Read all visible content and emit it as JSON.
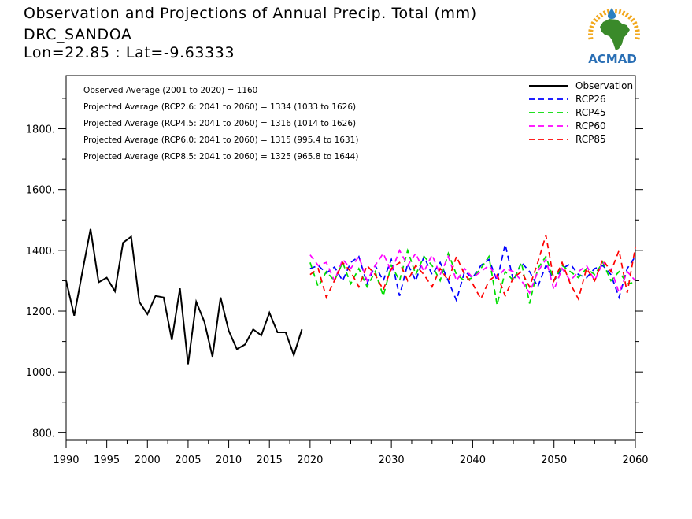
{
  "title_lines": [
    "Observation and Projections of Annual Precip. Total (mm)",
    "DRC_SANDOA",
    "Lon=22.85 : Lat=-9.63333"
  ],
  "logo": {
    "text": "ACMAD",
    "colors": {
      "africa": "#3a8a2a",
      "drop": "#2a7fc1",
      "sun": "#f2a81d",
      "text": "#2a6fb5"
    }
  },
  "chart_data": {
    "type": "line",
    "title": "Observation and Projections of Annual Precip. Total (mm)",
    "xlim": [
      1990,
      2060
    ],
    "ylim": [
      775,
      1975
    ],
    "x_ticks": [
      1990,
      1995,
      2000,
      2005,
      2010,
      2015,
      2020,
      2030,
      2040,
      2050,
      2060
    ],
    "x_tick_labels": [
      "1990",
      "1995",
      "2000",
      "2005",
      "2010",
      "2015",
      "2020",
      "2030",
      "2040",
      "2050",
      "2060"
    ],
    "y_ticks": [
      800,
      1000,
      1200,
      1400,
      1600,
      1800
    ],
    "y_tick_labels": [
      "800.",
      "1000.",
      "1200.",
      "1400.",
      "1600.",
      "1800."
    ],
    "grid": false,
    "legend_position": "top-right",
    "annotations": [
      "Observed Average (2001 to 2020) = 1160",
      "Projected Average (RCP2.6: 2041 to 2060) = 1334 (1033 to 1626)",
      "Projected Average (RCP4.5: 2041 to 2060) = 1316 (1014 to 1626)",
      "Projected Average (RCP6.0: 2041 to 2060) = 1315 (995.4 to 1631)",
      "Projected Average (RCP8.5: 2041 to 2060) = 1325 (965.8 to 1644)"
    ],
    "series": [
      {
        "name": "Observation",
        "color": "#000000",
        "dash": "solid",
        "x": [
          1990,
          1991,
          1992,
          1993,
          1994,
          1995,
          1996,
          1997,
          1998,
          1999,
          2000,
          2001,
          2002,
          2003,
          2004,
          2005,
          2006,
          2007,
          2008,
          2009,
          2010,
          2011,
          2012,
          2013,
          2014,
          2015,
          2016,
          2017,
          2018,
          2019
        ],
        "y": [
          1300,
          1185,
          1330,
          1470,
          1295,
          1310,
          1265,
          1425,
          1445,
          1230,
          1190,
          1250,
          1245,
          1105,
          1275,
          1025,
          1230,
          1165,
          1050,
          1245,
          1135,
          1075,
          1090,
          1140,
          1120,
          1195,
          1130,
          1130,
          1055,
          1140
        ]
      },
      {
        "name": "RCP26",
        "color": "#0000ff",
        "dash": "dashed",
        "x": [
          2020,
          2021,
          2022,
          2023,
          2024,
          2025,
          2026,
          2027,
          2028,
          2029,
          2030,
          2031,
          2032,
          2033,
          2034,
          2035,
          2036,
          2037,
          2038,
          2039,
          2040,
          2041,
          2042,
          2043,
          2044,
          2045,
          2046,
          2047,
          2048,
          2049,
          2050,
          2051,
          2052,
          2053,
          2054,
          2055,
          2056,
          2057,
          2058,
          2059,
          2060
        ],
        "y": [
          1340,
          1350,
          1325,
          1345,
          1300,
          1360,
          1380,
          1290,
          1350,
          1300,
          1370,
          1250,
          1355,
          1300,
          1380,
          1320,
          1360,
          1300,
          1235,
          1330,
          1310,
          1350,
          1370,
          1300,
          1420,
          1300,
          1360,
          1330,
          1280,
          1350,
          1300,
          1340,
          1355,
          1320,
          1310,
          1340,
          1350,
          1320,
          1245,
          1340,
          1380
        ]
      },
      {
        "name": "RCP45",
        "color": "#00dd00",
        "dash": "dashed",
        "x": [
          2020,
          2021,
          2022,
          2023,
          2024,
          2025,
          2026,
          2027,
          2028,
          2029,
          2030,
          2031,
          2032,
          2033,
          2034,
          2035,
          2036,
          2037,
          2038,
          2039,
          2040,
          2041,
          2042,
          2043,
          2044,
          2045,
          2046,
          2047,
          2048,
          2049,
          2050,
          2051,
          2052,
          2053,
          2054,
          2055,
          2056,
          2057,
          2058,
          2059,
          2060
        ],
        "y": [
          1360,
          1280,
          1330,
          1300,
          1360,
          1290,
          1340,
          1280,
          1330,
          1250,
          1350,
          1300,
          1400,
          1320,
          1380,
          1350,
          1300,
          1390,
          1320,
          1300,
          1310,
          1340,
          1380,
          1220,
          1330,
          1300,
          1360,
          1225,
          1340,
          1380,
          1300,
          1350,
          1330,
          1310,
          1340,
          1320,
          1360,
          1300,
          1330,
          1290,
          1295
        ]
      },
      {
        "name": "RCP60",
        "color": "#ff00ff",
        "dash": "dashed",
        "x": [
          2020,
          2021,
          2022,
          2023,
          2024,
          2025,
          2026,
          2027,
          2028,
          2029,
          2030,
          2031,
          2032,
          2033,
          2034,
          2035,
          2036,
          2037,
          2038,
          2039,
          2040,
          2041,
          2042,
          2043,
          2044,
          2045,
          2046,
          2047,
          2048,
          2049,
          2050,
          2051,
          2052,
          2053,
          2054,
          2055,
          2056,
          2057,
          2058,
          2059,
          2060
        ],
        "y": [
          1385,
          1350,
          1360,
          1300,
          1370,
          1340,
          1380,
          1300,
          1350,
          1390,
          1330,
          1400,
          1350,
          1390,
          1330,
          1385,
          1320,
          1380,
          1300,
          1340,
          1310,
          1330,
          1350,
          1310,
          1340,
          1330,
          1300,
          1260,
          1330,
          1370,
          1270,
          1340,
          1300,
          1330,
          1350,
          1300,
          1360,
          1340,
          1260,
          1330,
          1300
        ]
      },
      {
        "name": "RCP85",
        "color": "#ff0000",
        "dash": "dashed",
        "x": [
          2020,
          2021,
          2022,
          2023,
          2024,
          2025,
          2026,
          2027,
          2028,
          2029,
          2030,
          2031,
          2032,
          2033,
          2034,
          2035,
          2036,
          2037,
          2038,
          2039,
          2040,
          2041,
          2042,
          2043,
          2044,
          2045,
          2046,
          2047,
          2048,
          2049,
          2050,
          2051,
          2052,
          2053,
          2054,
          2055,
          2056,
          2057,
          2058,
          2059,
          2060
        ],
        "y": [
          1320,
          1340,
          1245,
          1300,
          1360,
          1330,
          1280,
          1350,
          1320,
          1270,
          1340,
          1360,
          1300,
          1350,
          1320,
          1280,
          1340,
          1300,
          1380,
          1320,
          1290,
          1240,
          1300,
          1320,
          1250,
          1310,
          1330,
          1280,
          1360,
          1450,
          1300,
          1360,
          1290,
          1240,
          1340,
          1300,
          1370,
          1330,
          1400,
          1260,
          1410
        ]
      }
    ]
  }
}
